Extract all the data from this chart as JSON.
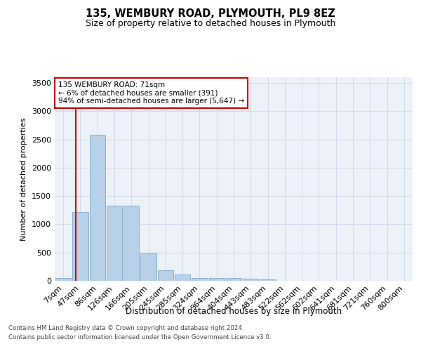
{
  "title": "135, WEMBURY ROAD, PLYMOUTH, PL9 8EZ",
  "subtitle": "Size of property relative to detached houses in Plymouth",
  "xlabel": "Distribution of detached houses by size in Plymouth",
  "ylabel": "Number of detached properties",
  "categories": [
    "7sqm",
    "47sqm",
    "86sqm",
    "126sqm",
    "166sqm",
    "205sqm",
    "245sqm",
    "285sqm",
    "324sqm",
    "364sqm",
    "404sqm",
    "443sqm",
    "483sqm",
    "522sqm",
    "562sqm",
    "602sqm",
    "641sqm",
    "681sqm",
    "721sqm",
    "760sqm",
    "800sqm"
  ],
  "bar_values": [
    50,
    1220,
    2580,
    1330,
    1330,
    490,
    190,
    110,
    55,
    50,
    50,
    40,
    30,
    0,
    0,
    0,
    0,
    0,
    0,
    0,
    0
  ],
  "bar_color": "#b8d0e8",
  "bar_edge_color": "#8ab0d0",
  "grid_color": "#d0d8e8",
  "background_color": "#edf2f9",
  "vline_x_bar": 1,
  "vline_color": "#cc0000",
  "annotation_text": "135 WEMBURY ROAD: 71sqm\n← 6% of detached houses are smaller (391)\n94% of semi-detached houses are larger (5,647) →",
  "annotation_box_color": "#cc0000",
  "ylim": [
    0,
    3600
  ],
  "yticks": [
    0,
    500,
    1000,
    1500,
    2000,
    2500,
    3000,
    3500
  ],
  "footer_line1": "Contains HM Land Registry data © Crown copyright and database right 2024.",
  "footer_line2": "Contains public sector information licensed under the Open Government Licence v3.0."
}
